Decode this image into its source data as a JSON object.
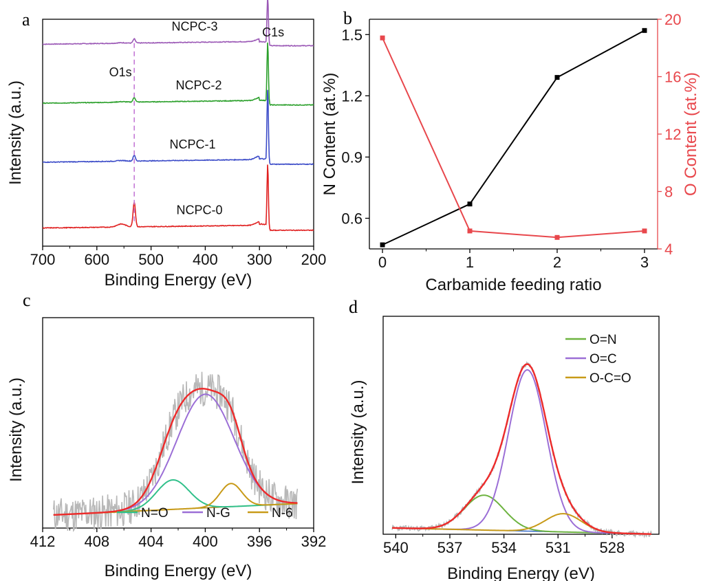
{
  "chart_data": [
    {
      "panel": "a",
      "type": "line",
      "xlabel": "Binding Energy (eV)",
      "ylabel": "Intensity (a.u.)",
      "xlim": [
        700,
        200
      ],
      "xticks": [
        700,
        600,
        500,
        400,
        300,
        200
      ],
      "peak_labels": [
        {
          "text": "O1s",
          "x": 531
        },
        {
          "text": "C1s",
          "x": 284.8
        }
      ],
      "series": [
        {
          "name": "NCPC-3",
          "color": "#9b59b6",
          "baseline": 0.89,
          "o_peak": 0.018,
          "c_peak": 0.21,
          "bump": 0.012
        },
        {
          "name": "NCPC-2",
          "color": "#2ca02c",
          "baseline": 0.63,
          "o_peak": 0.02,
          "c_peak": 0.27,
          "bump": 0.014
        },
        {
          "name": "NCPC-1",
          "color": "#3b4bc8",
          "baseline": 0.37,
          "o_peak": 0.025,
          "c_peak": 0.32,
          "bump": 0.016
        },
        {
          "name": "NCPC-0",
          "color": "#e02020",
          "baseline": 0.08,
          "o_peak": 0.11,
          "c_peak": 0.28,
          "bump": 0.018
        }
      ]
    },
    {
      "panel": "b",
      "type": "line",
      "xlabel": "Carbamide feeding ratio",
      "ylabel_left": "N Content (at.%)",
      "ylabel_right": "O Content (at.%)",
      "x": [
        0,
        1,
        2,
        3
      ],
      "xticks": [
        0,
        1,
        2,
        3
      ],
      "xlim": [
        -0.15,
        3.15
      ],
      "ylim_left": [
        0.45,
        1.575
      ],
      "yticks_left": [
        "0.6",
        "0.9",
        "1.2",
        "1.5"
      ],
      "ylim_right": [
        4,
        20
      ],
      "yticks_right": [
        4,
        8,
        12,
        16,
        20
      ],
      "series": [
        {
          "name": "N Content",
          "axis": "left",
          "color": "#000000",
          "values": [
            0.47,
            0.67,
            1.29,
            1.52
          ]
        },
        {
          "name": "O Content",
          "axis": "right",
          "color": "#e8474c",
          "values": [
            18.7,
            5.25,
            4.8,
            5.25
          ]
        }
      ]
    },
    {
      "panel": "c",
      "type": "line",
      "xlabel": "Binding Energy (eV)",
      "ylabel": "Intensity (a.u.)",
      "xlim": [
        412,
        392
      ],
      "xticks": [
        412,
        408,
        404,
        400,
        396,
        392
      ],
      "series": [
        {
          "name": "N=O",
          "color": "#30c08a",
          "center": 402.4,
          "height": 0.14,
          "width": 1.2
        },
        {
          "name": "N-G",
          "color": "#9b6ed6",
          "center": 400.0,
          "height": 0.54,
          "width": 2.1
        },
        {
          "name": "N-6",
          "color": "#c89a18",
          "center": 398.1,
          "height": 0.11,
          "width": 0.8
        }
      ],
      "envelope": {
        "color": "#ee2a2a"
      },
      "baseline": {
        "color": "#a88a18",
        "start": 0.06,
        "end": 0.12
      },
      "raw": {
        "color": "#b8b8b8"
      }
    },
    {
      "panel": "d",
      "type": "line",
      "xlabel": "Binding Energy (eV)",
      "ylabel": "Intensity (a.u.)",
      "xlim": [
        540.7,
        525.4
      ],
      "xticks": [
        540,
        537,
        534,
        531,
        528
      ],
      "series": [
        {
          "name": "O=N",
          "color": "#6db33f",
          "center": 535.1,
          "height": 0.16,
          "width": 1.1
        },
        {
          "name": "O=C",
          "color": "#9b6ed6",
          "center": 532.7,
          "height": 0.74,
          "width": 1.05
        },
        {
          "name": "O-C=O",
          "color": "#c89a18",
          "center": 530.7,
          "height": 0.084,
          "width": 1.0
        }
      ],
      "envelope": {
        "color": "#ee2a2a"
      },
      "baseline": {
        "color": "#3a6fc8",
        "start": 0.03,
        "end": 0.0
      },
      "raw": {
        "color": "#b8b8b8"
      }
    }
  ]
}
